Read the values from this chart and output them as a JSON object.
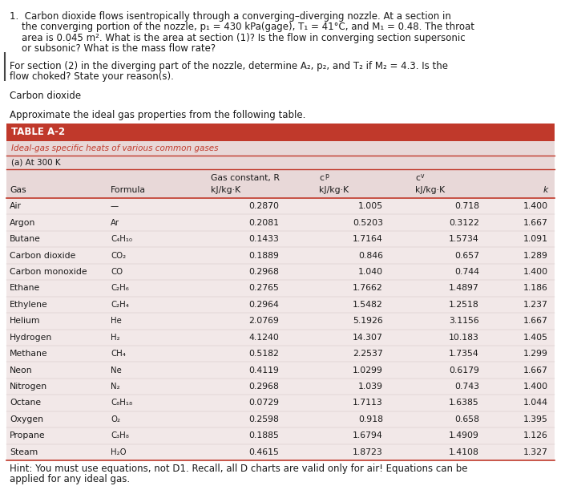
{
  "prob_line1": "1.  Carbon dioxide flows isentropically through a converging–diverging nozzle. At a section in",
  "prob_line2": "    the converging portion of the nozzle, p₁ = 430 kPa(gage), T₁ = 41°C, and M₁ = 0.48. The throat",
  "prob_line3": "    area is 0.045 m². What is the area at section (1)? Is the flow in converging section supersonic",
  "prob_line4": "    or subsonic? What is the mass flow rate?",
  "para2_line1": "For section (2) in the diverging part of the nozzle, determine A₂, p₂, and T₂ if M₂ = 4.3. Is the",
  "para2_line2": "flow choked? State your reason(s).",
  "label_cd": "Carbon dioxide",
  "label_approx": "Approximate the ideal gas properties from the following table.",
  "table_title": "TABLE A-2",
  "table_subtitle": "Ideal-gas specific heats of various common gases",
  "table_subsubtitle": "(a) At 300 K",
  "gases": [
    "Air",
    "Argon",
    "Butane",
    "Carbon dioxide",
    "Carbon monoxide",
    "Ethane",
    "Ethylene",
    "Helium",
    "Hydrogen",
    "Methane",
    "Neon",
    "Nitrogen",
    "Octane",
    "Oxygen",
    "Propane",
    "Steam"
  ],
  "formulas": [
    "—",
    "Ar",
    "C₄H₁₀",
    "CO₂",
    "CO",
    "C₂H₆",
    "C₂H₄",
    "He",
    "H₂",
    "CH₄",
    "Ne",
    "N₂",
    "C₈H₁₈",
    "O₂",
    "C₃H₈",
    "H₂O"
  ],
  "R_vals": [
    "0.2870",
    "0.2081",
    "0.1433",
    "0.1889",
    "0.2968",
    "0.2765",
    "0.2964",
    "2.0769",
    "4.1240",
    "0.5182",
    "0.4119",
    "0.2968",
    "0.0729",
    "0.2598",
    "0.1885",
    "0.4615"
  ],
  "cp_vals": [
    "1.005",
    "0.5203",
    "1.7164",
    "0.846",
    "1.040",
    "1.7662",
    "1.5482",
    "5.1926",
    "14.307",
    "2.2537",
    "1.0299",
    "1.039",
    "1.7113",
    "0.918",
    "1.6794",
    "1.8723"
  ],
  "cv_vals": [
    "0.718",
    "0.3122",
    "1.5734",
    "0.657",
    "0.744",
    "1.4897",
    "1.2518",
    "3.1156",
    "10.183",
    "1.7354",
    "0.6179",
    "0.743",
    "1.6385",
    "0.658",
    "1.4909",
    "1.4108"
  ],
  "k_vals": [
    "1.400",
    "1.667",
    "1.091",
    "1.289",
    "1.400",
    "1.186",
    "1.237",
    "1.667",
    "1.405",
    "1.299",
    "1.667",
    "1.400",
    "1.044",
    "1.395",
    "1.126",
    "1.327"
  ],
  "hint_line1": "Hint: You must use equations, not D1. Recall, all D charts are valid only for air! Equations can be",
  "hint_line2": "applied for any ideal gas.",
  "header_bg": "#c0392b",
  "subheader_bg": "#e8d8d8",
  "row_bg": "#f2e8e8",
  "table_border": "#c0392b",
  "header_text_color": "white",
  "subheader_text_color": "#c0392b",
  "body_text_color": "#1a1a1a",
  "bg_color": "white",
  "fs_body": 8.5,
  "fs_table": 7.8,
  "fs_header": 8.5
}
